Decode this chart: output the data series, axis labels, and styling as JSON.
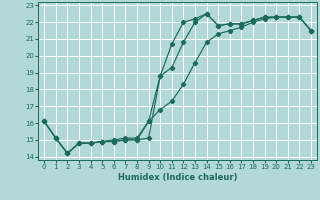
{
  "xlabel": "Humidex (Indice chaleur)",
  "bg_color": "#b2d8d8",
  "grid_color": "#ffffff",
  "line_color": "#1a6b5a",
  "xlim": [
    -0.5,
    23.5
  ],
  "ylim": [
    13.8,
    23.2
  ],
  "xticks": [
    0,
    1,
    2,
    3,
    4,
    5,
    6,
    7,
    8,
    9,
    10,
    11,
    12,
    13,
    14,
    15,
    16,
    17,
    18,
    19,
    20,
    21,
    22,
    23
  ],
  "yticks": [
    14,
    15,
    16,
    17,
    18,
    19,
    20,
    21,
    22,
    23
  ],
  "line1_x": [
    0,
    1,
    2,
    3,
    4,
    5,
    6,
    7,
    8,
    9,
    10,
    11,
    12,
    13,
    14,
    15,
    16,
    17,
    18,
    19,
    20,
    21,
    22,
    23
  ],
  "line1_y": [
    16.1,
    15.1,
    14.2,
    14.8,
    14.8,
    14.9,
    14.9,
    15.0,
    15.0,
    15.1,
    18.8,
    20.7,
    22.0,
    22.2,
    22.5,
    21.8,
    21.9,
    21.9,
    22.1,
    22.3,
    22.3,
    22.3,
    22.3,
    21.5
  ],
  "line2_x": [
    0,
    1,
    2,
    3,
    4,
    5,
    6,
    7,
    8,
    9,
    10,
    11,
    12,
    13,
    14,
    15,
    16,
    17,
    18,
    19,
    20,
    21,
    22,
    23
  ],
  "line2_y": [
    16.1,
    15.1,
    14.2,
    14.8,
    14.8,
    14.9,
    14.9,
    15.0,
    15.0,
    16.1,
    18.8,
    19.3,
    20.8,
    22.0,
    22.5,
    21.8,
    21.9,
    21.9,
    22.1,
    22.3,
    22.3,
    22.3,
    22.3,
    21.5
  ],
  "line3_x": [
    0,
    1,
    2,
    3,
    4,
    5,
    6,
    7,
    8,
    9,
    10,
    11,
    12,
    13,
    14,
    15,
    16,
    17,
    18,
    19,
    20,
    21,
    22,
    23
  ],
  "line3_y": [
    16.1,
    15.1,
    14.2,
    14.8,
    14.8,
    14.9,
    15.0,
    15.1,
    15.1,
    16.1,
    16.8,
    17.3,
    18.3,
    19.6,
    20.8,
    21.3,
    21.5,
    21.7,
    22.0,
    22.2,
    22.3,
    22.3,
    22.3,
    21.5
  ]
}
